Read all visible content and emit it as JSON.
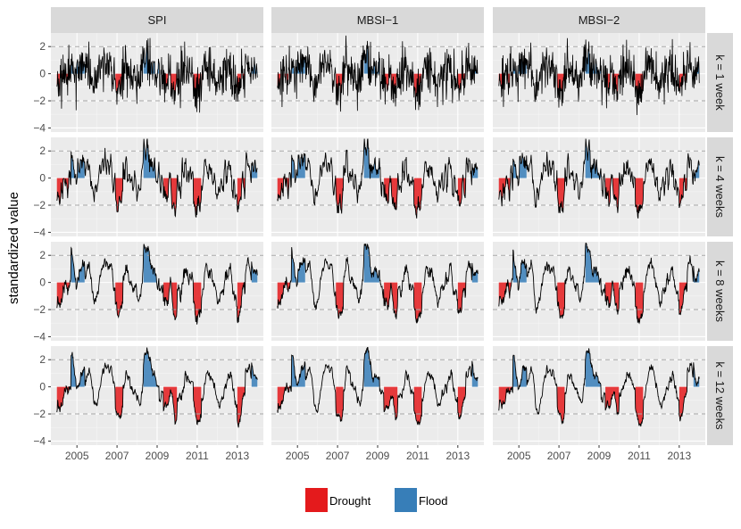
{
  "chart_data": {
    "type": "line",
    "ylabel": "standardized value",
    "columns": [
      "SPI",
      "MBSI−1",
      "MBSI−2"
    ],
    "rows": [
      "k = 1 week",
      "k = 4 weeks",
      "k = 8 weeks",
      "k = 12 weeks"
    ],
    "ylim": [
      -4.3,
      3.0
    ],
    "yticks": [
      -4,
      -2,
      0,
      2
    ],
    "ytick_labels": [
      "−4",
      "−2",
      "0",
      "2"
    ],
    "xlim": [
      2003.7,
      2014.3
    ],
    "xticks": [
      2005,
      2007,
      2009,
      2011,
      2013
    ],
    "xtick_labels": [
      "2005",
      "2007",
      "2009",
      "2011",
      "2013"
    ],
    "x_range": [
      2004.0,
      2014.0
    ],
    "reference_lines": [
      -2,
      2
    ],
    "drought_periods": [
      [
        2004.0,
        2004.7
      ],
      [
        2006.9,
        2007.3
      ],
      [
        2009.3,
        2010.0
      ],
      [
        2010.8,
        2011.2
      ],
      [
        2013.0,
        2013.4
      ]
    ],
    "flood_periods": [
      [
        2004.7,
        2005.4
      ],
      [
        2008.3,
        2009.1
      ],
      [
        2013.7,
        2014.0
      ]
    ],
    "legend": [
      {
        "label": "Drought",
        "color": "#e41a1c"
      },
      {
        "label": "Flood",
        "color": "#377eb8"
      }
    ]
  },
  "colors": {
    "panel_bg": "#ebebeb",
    "strip_bg": "#d9d9d9",
    "grid_major": "#ffffff",
    "ref_line": "#a6a6a6",
    "line": "#000000",
    "drought": "#e41a1c",
    "flood": "#377eb8"
  }
}
